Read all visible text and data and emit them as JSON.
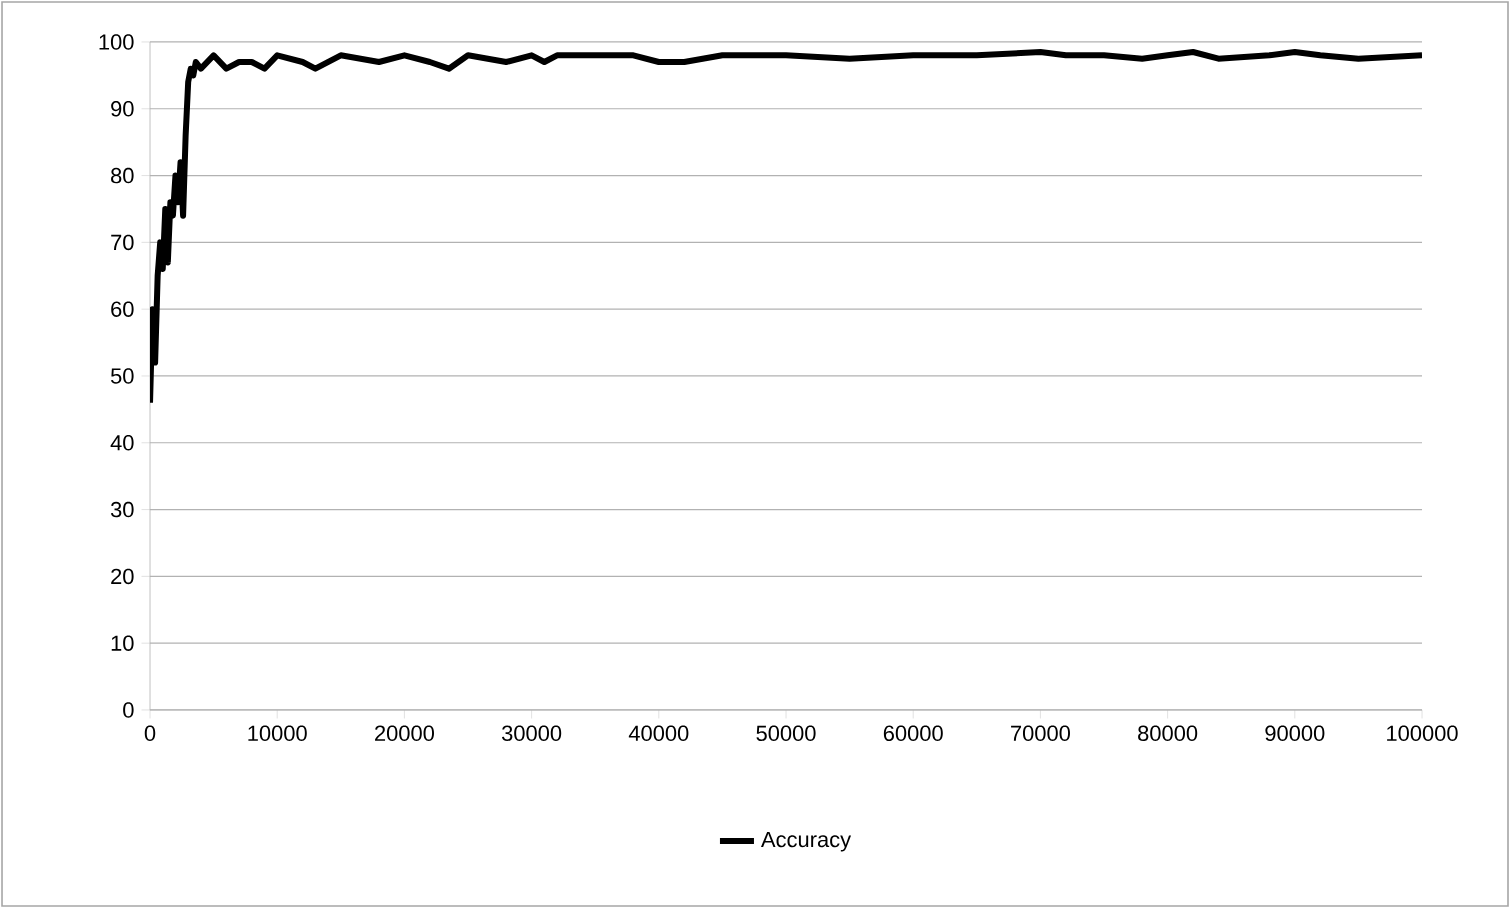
{
  "chart_data": {
    "type": "line",
    "x": [
      0,
      200,
      400,
      600,
      800,
      1000,
      1200,
      1400,
      1600,
      1800,
      2000,
      2200,
      2400,
      2600,
      2800,
      3000,
      3200,
      3400,
      3600,
      4000,
      4500,
      5000,
      6000,
      7000,
      8000,
      9000,
      10000,
      12000,
      13000,
      15000,
      18000,
      20000,
      22000,
      23500,
      25000,
      28000,
      30000,
      31000,
      32000,
      38000,
      40000,
      42000,
      45000,
      50000,
      55000,
      60000,
      65000,
      70000,
      72000,
      75000,
      78000,
      80000,
      82000,
      84000,
      88000,
      90000,
      92000,
      95000,
      100000
    ],
    "series": [
      {
        "name": "Accuracy",
        "color": "#000000",
        "values": [
          46,
          60,
          52,
          65,
          70,
          66,
          75,
          67,
          76,
          74,
          80,
          76,
          82,
          74,
          86,
          94,
          96,
          95,
          97,
          96,
          97,
          98,
          96,
          97,
          97,
          96,
          98,
          97,
          96,
          98,
          97,
          98,
          97,
          96,
          98,
          97,
          98,
          97,
          98,
          98,
          97,
          97,
          98,
          98,
          97.5,
          98,
          98,
          98.5,
          98,
          98,
          97.5,
          98,
          98.5,
          97.5,
          98,
          98.5,
          98,
          97.5,
          98
        ]
      }
    ],
    "xlim": [
      0,
      100000
    ],
    "xticks": [
      0,
      10000,
      20000,
      30000,
      40000,
      50000,
      60000,
      70000,
      80000,
      90000,
      100000
    ],
    "ylim": [
      0,
      100
    ],
    "yticks": [
      0,
      10,
      20,
      30,
      40,
      50,
      60,
      70,
      80,
      90,
      100
    ],
    "grid": "y",
    "legend": "bottom",
    "marker": "none",
    "line_style": "solid"
  }
}
